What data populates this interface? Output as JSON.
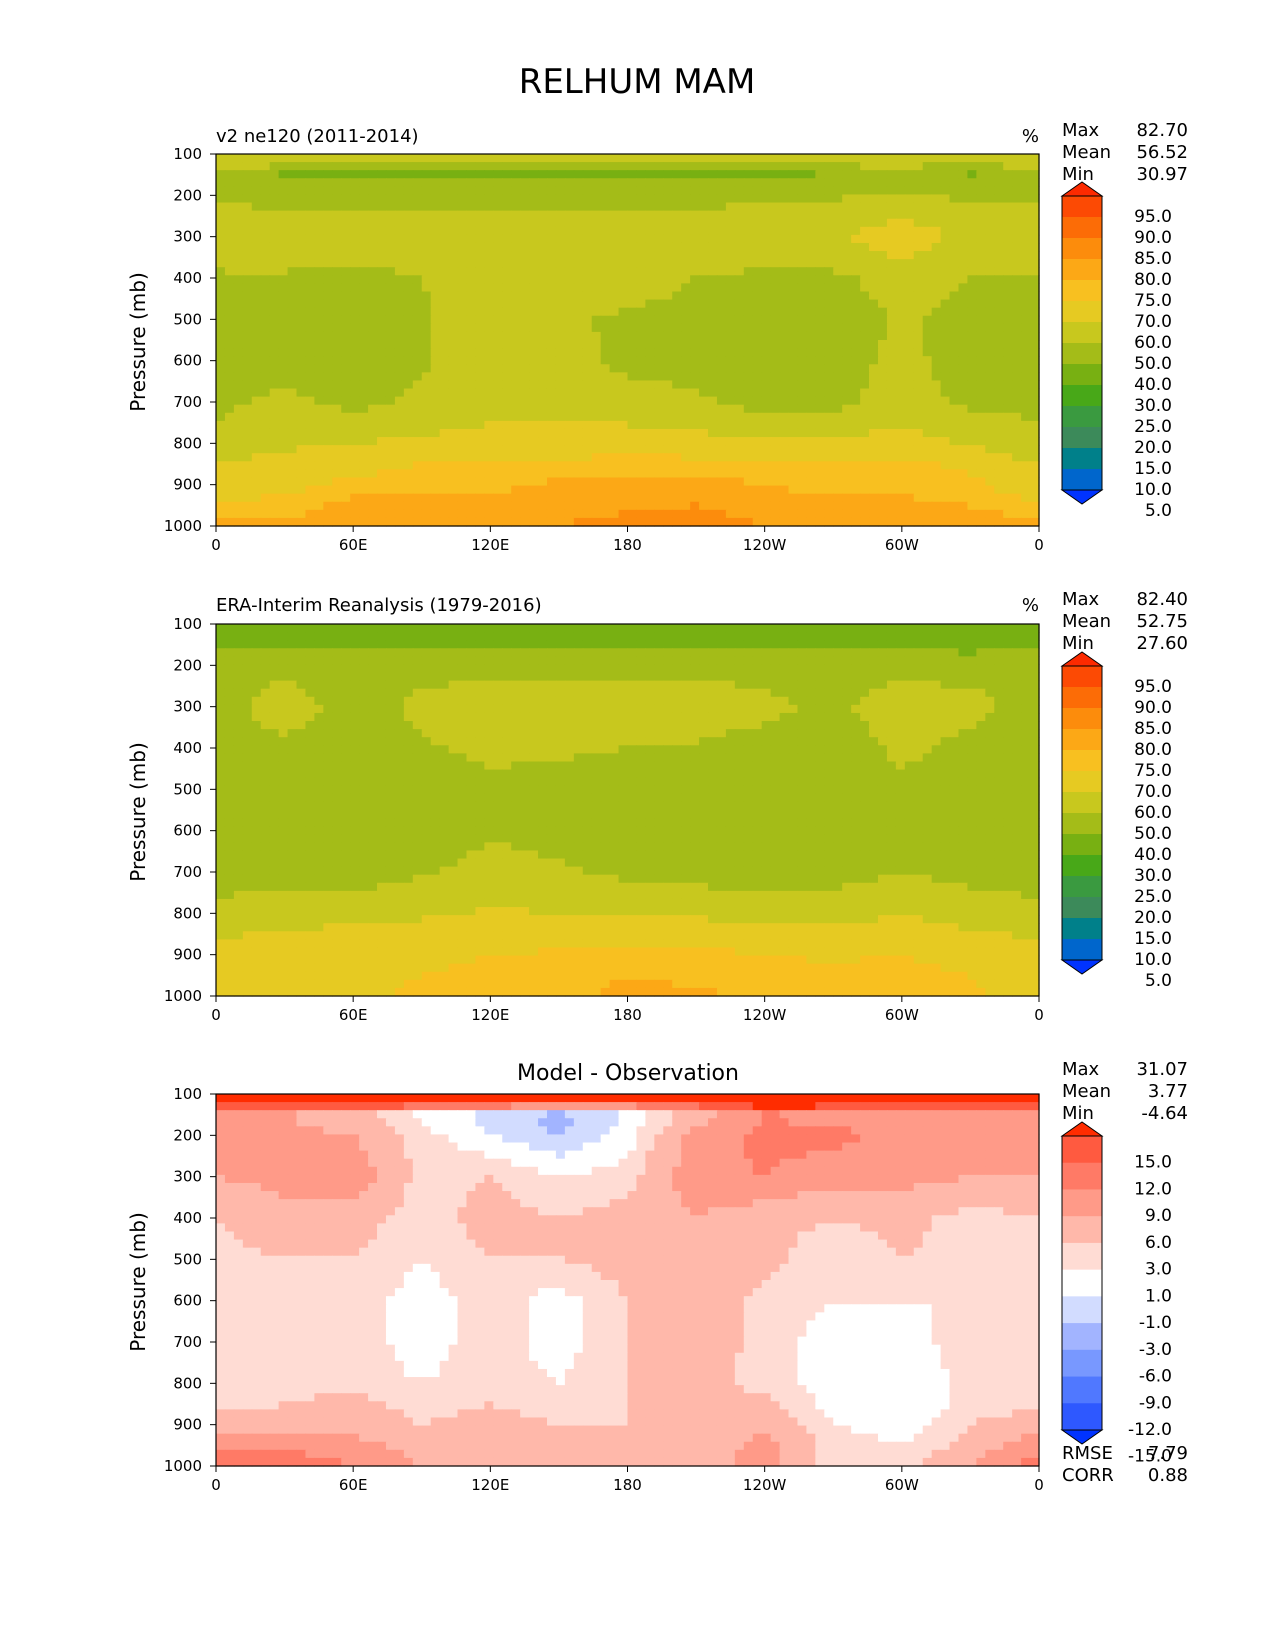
{
  "figure": {
    "title": "RELHUM MAM"
  },
  "colors": {
    "abs_levels": [
      "#0033ff",
      "#0066cc",
      "#00808a",
      "#3c8a5a",
      "#3a9a40",
      "#48a818",
      "#78b012",
      "#a4bc18",
      "#c8c81e",
      "#e6ca22",
      "#f8c020",
      "#fca816",
      "#fc8c0c",
      "#fc6c06",
      "#fc4a04",
      "#fc2a00"
    ],
    "diff_levels": [
      "#0033ff",
      "#2e58ff",
      "#5078ff",
      "#7898ff",
      "#a2b4ff",
      "#d2dcff",
      "#ffffff",
      "#ffdcd4",
      "#ffb8aa",
      "#ff9a88",
      "#ff7a66",
      "#ff5a40",
      "#ff2c00"
    ]
  },
  "panels": [
    {
      "id": "model",
      "left_title": "v2 ne120 (2011-2014)",
      "center_title": "",
      "units": "%",
      "stats": {
        "max_label": "Max",
        "max": "82.70",
        "mean_label": "Mean",
        "mean": "56.52",
        "min_label": "Min",
        "min": "30.97"
      },
      "colorbar_ticks": [
        "95.0",
        "90.0",
        "85.0",
        "80.0",
        "75.0",
        "70.0",
        "60.0",
        "50.0",
        "40.0",
        "30.0",
        "25.0",
        "20.0",
        "15.0",
        "10.0",
        "5.0"
      ]
    },
    {
      "id": "obs",
      "left_title": "ERA-Interim Reanalysis (1979-2016)",
      "center_title": "",
      "units": "%",
      "stats": {
        "max_label": "Max",
        "max": "82.40",
        "mean_label": "Mean",
        "mean": "52.75",
        "min_label": "Min",
        "min": "27.60"
      },
      "colorbar_ticks": [
        "95.0",
        "90.0",
        "85.0",
        "80.0",
        "75.0",
        "70.0",
        "60.0",
        "50.0",
        "40.0",
        "30.0",
        "25.0",
        "20.0",
        "15.0",
        "10.0",
        "5.0"
      ]
    },
    {
      "id": "diff",
      "left_title": "",
      "center_title": "Model - Observation",
      "units": "",
      "stats": {
        "max_label": "Max",
        "max": "31.07",
        "mean_label": "Mean",
        "mean": "3.77",
        "min_label": "Min",
        "min": "-4.64"
      },
      "colorbar_ticks": [
        "15.0",
        "12.0",
        "9.0",
        "6.0",
        "3.0",
        "1.0",
        "-1.0",
        "-3.0",
        "-6.0",
        "-9.0",
        "-12.0",
        "-15.0"
      ],
      "extra_stats": {
        "rmse_label": "RMSE",
        "rmse": "7.79",
        "corr_label": "CORR",
        "corr": "0.88"
      }
    }
  ],
  "chart_data": [
    {
      "type": "heatmap",
      "title": "v2 ne120 (2011-2014)",
      "units": "%",
      "ylabel": "Pressure (mb)",
      "xlabel": "",
      "x_ticks": [
        "0",
        "60E",
        "120E",
        "180",
        "120W",
        "60W",
        "0"
      ],
      "y_ticks": [
        "100",
        "200",
        "300",
        "400",
        "500",
        "600",
        "700",
        "800",
        "900",
        "1000"
      ],
      "xlim": [
        0,
        360
      ],
      "ylim": [
        100,
        1000
      ],
      "levels": [
        5,
        10,
        15,
        20,
        25,
        30,
        40,
        50,
        60,
        70,
        75,
        80,
        85,
        90,
        95
      ],
      "max": 82.7,
      "mean": 56.52,
      "min": 30.97,
      "pressure": [
        100,
        150,
        200,
        300,
        400,
        500,
        600,
        700,
        800,
        850,
        900,
        950,
        1000
      ],
      "longitude": [
        0,
        30,
        60,
        90,
        120,
        150,
        180,
        210,
        240,
        270,
        300,
        330,
        360
      ],
      "values": [
        [
          62,
          64,
          65,
          64,
          63,
          62,
          62,
          63,
          63,
          62,
          61,
          58,
          62
        ],
        [
          48,
          38,
          37,
          37,
          37,
          37,
          37,
          37,
          38,
          40,
          45,
          39,
          48
        ],
        [
          49,
          47,
          46,
          47,
          47,
          47,
          47,
          47,
          48,
          49,
          50,
          49,
          49
        ],
        [
          55,
          56,
          56,
          56,
          57,
          57,
          57,
          57,
          57,
          58,
          68,
          56,
          55
        ],
        [
          49,
          49,
          47,
          50,
          55,
          55,
          56,
          50,
          48,
          48,
          54,
          50,
          49
        ],
        [
          46,
          46,
          45,
          49,
          55,
          52,
          48,
          46,
          45,
          45,
          51,
          47,
          46
        ],
        [
          46,
          47,
          45,
          49,
          55,
          55,
          47,
          45,
          44,
          45,
          53,
          45,
          46
        ],
        [
          48,
          52,
          47,
          52,
          57,
          57,
          55,
          52,
          46,
          47,
          55,
          48,
          48
        ],
        [
          52,
          58,
          60,
          62,
          63,
          64,
          64,
          63,
          63,
          62,
          64,
          59,
          52
        ],
        [
          60,
          64,
          67,
          70,
          70,
          72,
          74,
          73,
          70,
          71,
          72,
          68,
          60
        ],
        [
          64,
          68,
          72,
          73,
          74,
          76,
          76,
          77,
          75,
          73,
          74,
          72,
          64
        ],
        [
          72,
          72,
          77,
          78,
          76,
          78,
          79,
          80,
          78,
          77,
          76,
          75,
          72
        ],
        [
          77,
          77,
          79,
          80,
          79,
          80,
          82,
          82,
          80,
          78,
          78,
          77,
          77
        ]
      ]
    },
    {
      "type": "heatmap",
      "title": "ERA-Interim Reanalysis (1979-2016)",
      "units": "%",
      "ylabel": "Pressure (mb)",
      "xlabel": "",
      "x_ticks": [
        "0",
        "60E",
        "120E",
        "180",
        "120W",
        "60W",
        "0"
      ],
      "y_ticks": [
        "100",
        "200",
        "300",
        "400",
        "500",
        "600",
        "700",
        "800",
        "900",
        "1000"
      ],
      "xlim": [
        0,
        360
      ],
      "ylim": [
        100,
        1000
      ],
      "levels": [
        5,
        10,
        15,
        20,
        25,
        30,
        40,
        50,
        60,
        70,
        75,
        80,
        85,
        90,
        95
      ],
      "max": 82.4,
      "mean": 52.75,
      "min": 27.6,
      "pressure": [
        100,
        150,
        200,
        300,
        400,
        500,
        600,
        700,
        800,
        850,
        900,
        950,
        1000
      ],
      "longitude": [
        0,
        30,
        60,
        90,
        120,
        150,
        180,
        210,
        240,
        270,
        300,
        330,
        360
      ],
      "values": [
        [
          35,
          37,
          32,
          36,
          37,
          38,
          38,
          36,
          30,
          35,
          36,
          30,
          35
        ],
        [
          38,
          37,
          37,
          38,
          39,
          40,
          40,
          39,
          38,
          39,
          39,
          36,
          38
        ],
        [
          48,
          47,
          46,
          47,
          47,
          47,
          47,
          47,
          47,
          48,
          47,
          46,
          48
        ],
        [
          46,
          55,
          46,
          52,
          56,
          56,
          56,
          55,
          52,
          48,
          55,
          53,
          46
        ],
        [
          45,
          48,
          45,
          49,
          52,
          52,
          50,
          49,
          47,
          45,
          52,
          47,
          45
        ],
        [
          44,
          44,
          43,
          45,
          48,
          45,
          43,
          42,
          41,
          44,
          48,
          45,
          44
        ],
        [
          44,
          44,
          43,
          45,
          49,
          47,
          44,
          42,
          41,
          43,
          47,
          44,
          44
        ],
        [
          46,
          46,
          45,
          49,
          53,
          51,
          48,
          46,
          44,
          46,
          50,
          46,
          46
        ],
        [
          52,
          56,
          55,
          58,
          61,
          60,
          59,
          58,
          56,
          55,
          60,
          56,
          52
        ],
        [
          59,
          61,
          63,
          65,
          66,
          66,
          67,
          66,
          63,
          63,
          65,
          61,
          59
        ],
        [
          62,
          64,
          66,
          69,
          70,
          71,
          73,
          72,
          70,
          69,
          70,
          67,
          62
        ],
        [
          67,
          67,
          68,
          70,
          71,
          73,
          75,
          74,
          72,
          72,
          72,
          70,
          67
        ],
        [
          68,
          68,
          69,
          71,
          72,
          74,
          76,
          76,
          74,
          73,
          73,
          71,
          68
        ]
      ]
    },
    {
      "type": "heatmap",
      "title": "Model - Observation",
      "units": "%",
      "ylabel": "Pressure (mb)",
      "xlabel": "",
      "x_ticks": [
        "0",
        "60E",
        "120E",
        "180",
        "120W",
        "60W",
        "0"
      ],
      "y_ticks": [
        "100",
        "200",
        "300",
        "400",
        "500",
        "600",
        "700",
        "800",
        "900",
        "1000"
      ],
      "xlim": [
        0,
        360
      ],
      "ylim": [
        100,
        1000
      ],
      "levels": [
        -15,
        -12,
        -9,
        -6,
        -3,
        -1,
        1,
        3,
        6,
        9,
        12,
        15
      ],
      "max": 31.07,
      "mean": 3.77,
      "min": -4.64,
      "rmse": 7.79,
      "corr": 0.88,
      "pressure": [
        100,
        150,
        200,
        300,
        400,
        500,
        600,
        700,
        800,
        850,
        900,
        950,
        1000
      ],
      "longitude": [
        0,
        30,
        60,
        90,
        120,
        150,
        180,
        210,
        240,
        270,
        300,
        330,
        360
      ],
      "values": [
        [
          25,
          26,
          28,
          27,
          26,
          24,
          22,
          23,
          25,
          26,
          23,
          26,
          25
        ],
        [
          6,
          6,
          4,
          0,
          -2,
          -4,
          -1,
          4,
          9,
          7,
          8,
          6,
          6
        ],
        [
          6,
          7,
          6,
          2,
          -1,
          -3,
          0,
          7,
          10,
          10,
          8,
          9,
          6
        ],
        [
          6,
          7,
          8,
          2,
          3,
          1,
          2,
          8,
          9,
          7,
          7,
          6,
          6
        ],
        [
          3,
          5,
          4,
          2,
          4,
          3,
          4,
          6,
          4,
          3,
          4,
          2,
          3
        ],
        [
          2,
          3,
          3,
          1,
          3,
          3,
          4,
          5,
          4,
          1,
          3,
          2,
          2
        ],
        [
          1,
          2,
          2,
          0,
          2,
          0,
          3,
          5,
          2,
          1,
          1,
          1,
          1
        ],
        [
          1,
          2,
          2,
          0,
          2,
          0,
          3,
          5,
          2,
          0,
          0,
          2,
          1
        ],
        [
          1,
          2,
          2,
          1,
          2,
          1,
          3,
          4,
          2,
          0,
          -1,
          2,
          1
        ],
        [
          2,
          3,
          4,
          2,
          3,
          2,
          3,
          4,
          4,
          0,
          -1,
          2,
          2
        ],
        [
          5,
          5,
          5,
          3,
          4,
          3,
          3,
          4,
          5,
          1,
          0,
          3,
          5
        ],
        [
          8,
          8,
          7,
          5,
          5,
          4,
          4,
          4,
          7,
          2,
          1,
          4,
          8
        ],
        [
          11,
          12,
          9,
          6,
          6,
          5,
          5,
          5,
          7,
          2,
          2,
          6,
          11
        ]
      ]
    }
  ]
}
